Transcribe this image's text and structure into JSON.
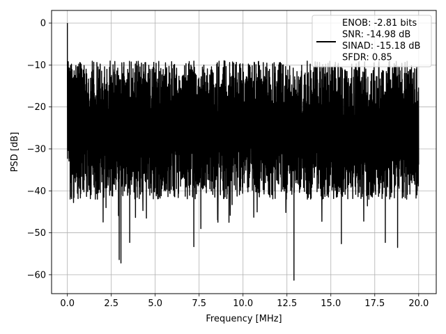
{
  "chart_data": {
    "type": "line",
    "title": "",
    "xlabel": "Frequency [MHz]",
    "ylabel": "PSD [dB]",
    "xlim": [
      -0.9,
      21.0
    ],
    "ylim": [
      -64.5,
      3.0
    ],
    "xticks": [
      0.0,
      2.5,
      5.0,
      7.5,
      10.0,
      12.5,
      15.0,
      17.5,
      20.0
    ],
    "xtick_labels": [
      "0.0",
      "2.5",
      "5.0",
      "7.5",
      "10.0",
      "12.5",
      "15.0",
      "17.5",
      "20.0"
    ],
    "yticks": [
      0,
      -10,
      -20,
      -30,
      -40,
      -50,
      -60
    ],
    "ytick_labels": [
      "0",
      "−10",
      "−20",
      "−30",
      "−40",
      "−50",
      "−60"
    ],
    "grid": true,
    "legend_placement": "upper right",
    "colors": {
      "series": "#000000",
      "grid": "#b0b0b0",
      "axes": "#000000"
    },
    "series": [
      {
        "legend_lines": [
          "ENOB: -2.81 bits",
          "SNR: -14.98 dB",
          "SINAD: -15.18 dB",
          "SFDR: 0.85"
        ],
        "color": "#000000",
        "x_range": [
          0.0,
          20.0
        ],
        "peak": {
          "x": 0.0,
          "y": 0.0
        },
        "envelope": {
          "upper_typical": -20.0,
          "lower_typical": -35.0,
          "minimum": {
            "x": 12.9,
            "y": -61.3
          }
        },
        "notable_points": [
          {
            "x": 0.0,
            "y": 0.0
          },
          {
            "x": 0.05,
            "y": -10.0
          },
          {
            "x": 0.35,
            "y": -42.8
          },
          {
            "x": 1.68,
            "y": -9.4
          },
          {
            "x": 2.2,
            "y": -44.0
          },
          {
            "x": 2.95,
            "y": -56.4
          },
          {
            "x": 3.05,
            "y": -57.2
          },
          {
            "x": 3.55,
            "y": -52.3
          },
          {
            "x": 4.5,
            "y": -46.5
          },
          {
            "x": 7.2,
            "y": -53.3
          },
          {
            "x": 7.6,
            "y": -49.0
          },
          {
            "x": 9.2,
            "y": -47.5
          },
          {
            "x": 12.9,
            "y": -61.3
          },
          {
            "x": 15.6,
            "y": -52.6
          },
          {
            "x": 18.1,
            "y": -52.3
          },
          {
            "x": 18.8,
            "y": -53.5
          }
        ]
      }
    ]
  }
}
